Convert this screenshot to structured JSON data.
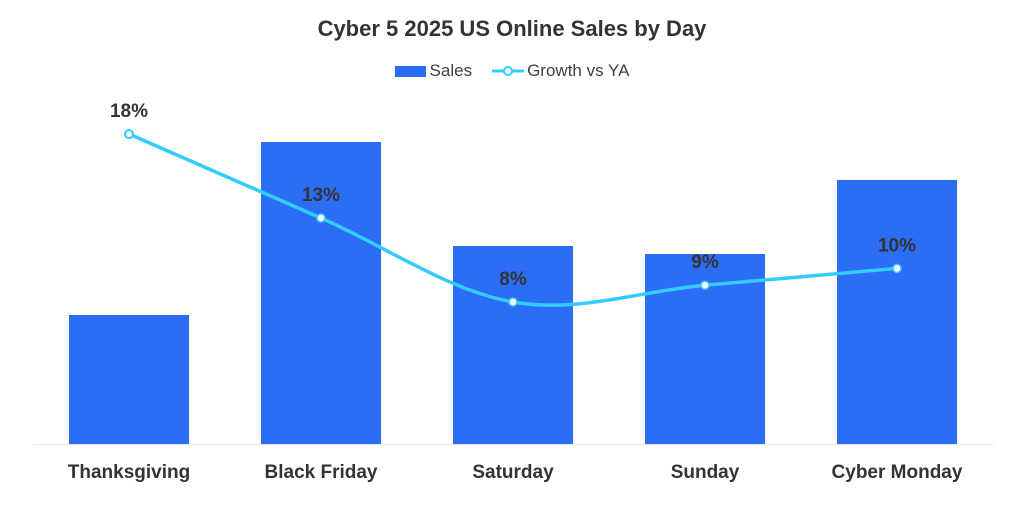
{
  "title": "Cyber 5 2025 US Online Sales by Day",
  "legend": {
    "sales_label": "Sales",
    "growth_label": "Growth vs YA"
  },
  "colors": {
    "bar": "#2B6EF5",
    "line": "#33CCFF",
    "text": "#333333",
    "axis": "#EBEBEB"
  },
  "chart_data": {
    "type": "bar",
    "title": "Cyber 5 2025 US Online Sales by Day",
    "xlabel": "",
    "ylabel": "",
    "categories": [
      "Thanksgiving",
      "Black Friday",
      "Saturday",
      "Sunday",
      "Cyber Monday"
    ],
    "series": [
      {
        "name": "Sales",
        "type": "bar",
        "axis": "primary (unlabeled)",
        "values": [
          129,
          302,
          198,
          190,
          264
        ],
        "note": "relative bar heights in px; no y-axis scale shown"
      },
      {
        "name": "Growth vs YA",
        "type": "line",
        "axis": "secondary (unlabeled)",
        "values": [
          18,
          13,
          8,
          9,
          10
        ],
        "labels": [
          "18%",
          "13%",
          "8%",
          "9%",
          "10%"
        ],
        "unit": "%",
        "smooth": true
      }
    ],
    "grid": false,
    "legend_position": "top"
  }
}
